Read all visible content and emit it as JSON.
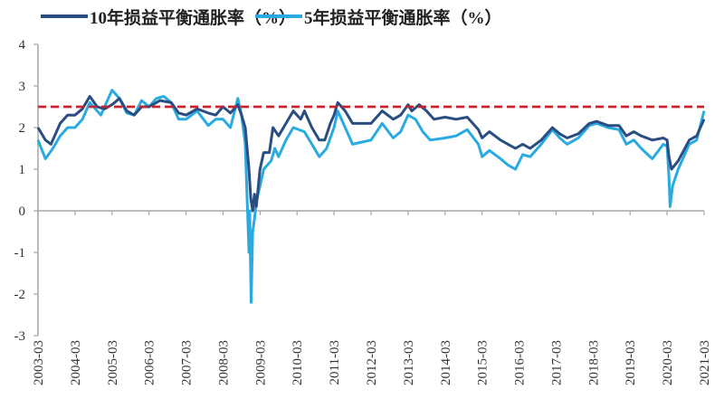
{
  "chart_data": {
    "type": "line",
    "title": "",
    "xlabel": "",
    "ylabel": "",
    "ylim": [
      -3,
      4
    ],
    "xlim": [
      2003.0,
      2021.0
    ],
    "yticks": [
      "4",
      "3",
      "2",
      "1",
      "0",
      "-1",
      "-2",
      "-3"
    ],
    "ytick_values": [
      4,
      3,
      2,
      1,
      0,
      -1,
      -2,
      -3
    ],
    "xticks": [
      "2003-03",
      "2004-03",
      "2005-03",
      "2006-03",
      "2007-03",
      "2008-03",
      "2009-03",
      "2010-03",
      "2011-03",
      "2012-03",
      "2013-03",
      "2014-03",
      "2015-03",
      "2016-03",
      "2017-03",
      "2018-03",
      "2019-03",
      "2020-03",
      "2021-03"
    ],
    "grid": false,
    "legend_position": "top",
    "reference_line": {
      "value": 2.5,
      "color": "#c8232c",
      "style": "dashed"
    },
    "series": [
      {
        "name": "10年损益平衡通胀率（%）",
        "color": "#2a4d82",
        "x": [
          2003.0,
          2003.2,
          2003.35,
          2003.6,
          2003.8,
          2004.0,
          2004.2,
          2004.4,
          2004.6,
          2004.8,
          2005.0,
          2005.2,
          2005.4,
          2005.6,
          2005.8,
          2006.0,
          2006.3,
          2006.6,
          2006.8,
          2007.0,
          2007.3,
          2007.6,
          2007.8,
          2008.0,
          2008.2,
          2008.4,
          2008.5,
          2008.6,
          2008.7,
          2008.75,
          2008.8,
          2008.85,
          2008.9,
          2009.0,
          2009.1,
          2009.25,
          2009.35,
          2009.5,
          2009.7,
          2009.9,
          2010.1,
          2010.2,
          2010.4,
          2010.6,
          2010.75,
          2010.9,
          2011.0,
          2011.1,
          2011.3,
          2011.5,
          2012.0,
          2012.3,
          2012.6,
          2012.8,
          2013.0,
          2013.1,
          2013.3,
          2013.5,
          2013.7,
          2014.0,
          2014.3,
          2014.6,
          2014.9,
          2015.0,
          2015.2,
          2015.5,
          2015.7,
          2015.9,
          2016.1,
          2016.3,
          2016.6,
          2016.9,
          2017.1,
          2017.3,
          2017.6,
          2017.9,
          2018.1,
          2018.4,
          2018.7,
          2018.9,
          2019.1,
          2019.3,
          2019.6,
          2019.9,
          2020.0,
          2020.05,
          2020.12,
          2020.3,
          2020.6,
          2020.8,
          2021.0
        ],
        "y": [
          2.0,
          1.7,
          1.6,
          2.1,
          2.3,
          2.3,
          2.45,
          2.75,
          2.5,
          2.45,
          2.55,
          2.7,
          2.4,
          2.3,
          2.5,
          2.5,
          2.65,
          2.6,
          2.35,
          2.3,
          2.45,
          2.35,
          2.3,
          2.5,
          2.35,
          2.55,
          2.3,
          2.0,
          1.0,
          0.3,
          0.0,
          0.4,
          0.1,
          1.0,
          1.4,
          1.4,
          2.0,
          1.8,
          2.1,
          2.4,
          2.2,
          2.4,
          2.0,
          1.7,
          1.7,
          2.1,
          2.3,
          2.6,
          2.4,
          2.1,
          2.1,
          2.4,
          2.2,
          2.3,
          2.55,
          2.4,
          2.55,
          2.4,
          2.2,
          2.25,
          2.2,
          2.25,
          1.95,
          1.75,
          1.9,
          1.7,
          1.6,
          1.5,
          1.6,
          1.5,
          1.7,
          2.0,
          1.85,
          1.75,
          1.85,
          2.1,
          2.15,
          2.05,
          2.05,
          1.8,
          1.9,
          1.8,
          1.7,
          1.75,
          1.7,
          1.3,
          1.0,
          1.2,
          1.7,
          1.8,
          2.2
        ]
      },
      {
        "name": "5年损益平衡通胀率（%）",
        "color": "#29abe2",
        "x": [
          2003.0,
          2003.2,
          2003.4,
          2003.6,
          2003.8,
          2004.0,
          2004.2,
          2004.4,
          2004.7,
          2005.0,
          2005.2,
          2005.4,
          2005.6,
          2005.8,
          2006.0,
          2006.2,
          2006.4,
          2006.6,
          2006.8,
          2007.0,
          2007.3,
          2007.6,
          2007.8,
          2008.0,
          2008.2,
          2008.4,
          2008.5,
          2008.6,
          2008.7,
          2008.72,
          2008.76,
          2008.8,
          2008.85,
          2008.9,
          2009.0,
          2009.1,
          2009.3,
          2009.4,
          2009.5,
          2009.7,
          2009.9,
          2010.2,
          2010.4,
          2010.6,
          2010.8,
          2011.0,
          2011.1,
          2011.3,
          2011.5,
          2012.0,
          2012.3,
          2012.6,
          2012.8,
          2013.0,
          2013.2,
          2013.4,
          2013.6,
          2014.0,
          2014.3,
          2014.6,
          2014.9,
          2015.0,
          2015.2,
          2015.5,
          2015.7,
          2015.9,
          2016.1,
          2016.3,
          2016.6,
          2016.9,
          2017.1,
          2017.3,
          2017.6,
          2017.9,
          2018.1,
          2018.4,
          2018.7,
          2018.9,
          2019.1,
          2019.3,
          2019.6,
          2019.9,
          2020.0,
          2020.05,
          2020.08,
          2020.15,
          2020.3,
          2020.6,
          2020.8,
          2021.0
        ],
        "y": [
          1.7,
          1.25,
          1.5,
          1.8,
          2.0,
          2.0,
          2.2,
          2.6,
          2.3,
          2.9,
          2.7,
          2.35,
          2.3,
          2.65,
          2.5,
          2.7,
          2.75,
          2.6,
          2.2,
          2.2,
          2.4,
          2.05,
          2.2,
          2.2,
          2.0,
          2.7,
          2.3,
          1.6,
          -1.0,
          0.0,
          -2.2,
          -0.5,
          -0.2,
          0.2,
          0.6,
          1.0,
          1.2,
          1.5,
          1.3,
          1.7,
          2.0,
          1.9,
          1.6,
          1.3,
          1.5,
          2.0,
          2.4,
          2.0,
          1.6,
          1.7,
          2.1,
          1.75,
          1.9,
          2.3,
          2.2,
          1.9,
          1.7,
          1.75,
          1.8,
          1.95,
          1.6,
          1.3,
          1.45,
          1.25,
          1.1,
          1.0,
          1.35,
          1.3,
          1.6,
          1.95,
          1.75,
          1.6,
          1.75,
          2.05,
          2.1,
          2.0,
          1.95,
          1.6,
          1.7,
          1.5,
          1.25,
          1.6,
          1.55,
          0.8,
          0.1,
          0.6,
          1.0,
          1.6,
          1.7,
          2.4
        ]
      }
    ]
  }
}
